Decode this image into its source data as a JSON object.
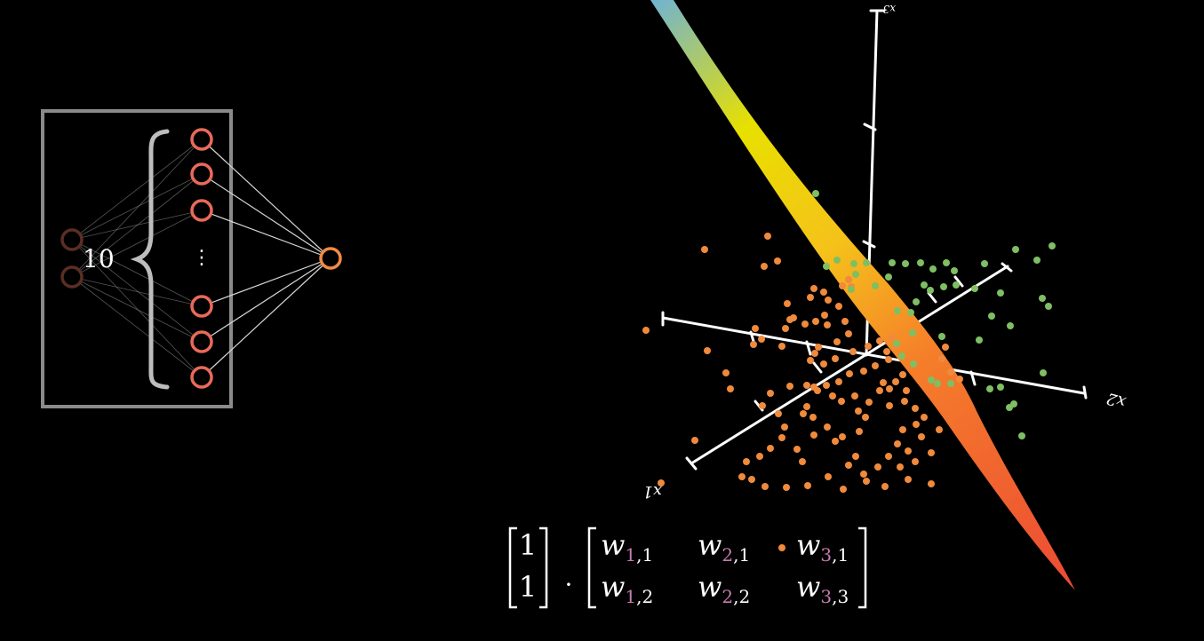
{
  "network": {
    "hidden_count_label": "10",
    "ellipsis": "⋮",
    "input_nodes": 2,
    "hidden_nodes_shown": 6,
    "output_nodes": 1,
    "colors": {
      "input": "#5a2e24",
      "hidden": "#e96a5a",
      "output": "#f08a45",
      "box": "#8a8a8a",
      "edges": "#9a9a9a"
    }
  },
  "plot": {
    "axes": {
      "x1_label": "x1",
      "x2_label": "x2",
      "x3_label": "x3"
    },
    "class_colors": {
      "orange": "#f08a3c",
      "green": "#7fbf63"
    },
    "surface_gradient": [
      "#6fb3d4",
      "#f0e000",
      "#f5a020",
      "#ee5533"
    ],
    "orange_point_count": 117,
    "green_point_count": 47
  },
  "equation": {
    "vector": [
      "1",
      "1"
    ],
    "dot": "·",
    "matrix": [
      [
        {
          "base": "w",
          "i": "1",
          "j": "1"
        },
        {
          "base": "w",
          "i": "2",
          "j": "1"
        },
        {
          "base": "w",
          "i": "3",
          "j": "1"
        }
      ],
      [
        {
          "base": "w",
          "i": "1",
          "j": "2"
        },
        {
          "base": "w",
          "i": "2",
          "j": "2"
        },
        {
          "base": "w",
          "i": "3",
          "j": "3"
        }
      ]
    ],
    "colors": {
      "index": "#c77bb0",
      "text": "#ffffff"
    }
  }
}
